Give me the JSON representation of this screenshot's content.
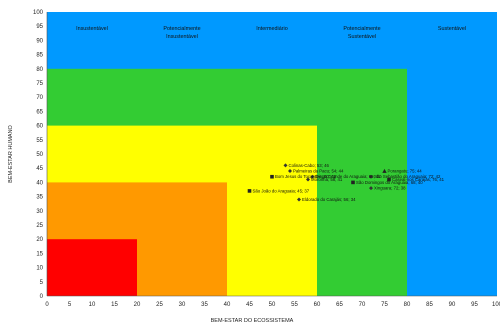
{
  "chart_data": {
    "type": "scatter",
    "xlabel": "BEM-ESTAR DO ECOSSISTEMA",
    "ylabel": "BEM-ESTAR HUMANO",
    "xlim": [
      0,
      100
    ],
    "ylim": [
      0,
      100
    ],
    "x_ticks": [
      0,
      5,
      10,
      15,
      20,
      25,
      30,
      35,
      40,
      45,
      50,
      55,
      60,
      65,
      70,
      75,
      80,
      85,
      90,
      95,
      100
    ],
    "y_ticks": [
      0,
      5,
      10,
      15,
      20,
      25,
      30,
      35,
      40,
      45,
      50,
      55,
      60,
      65,
      70,
      75,
      80,
      85,
      90,
      95,
      100
    ],
    "grid": false,
    "zones": [
      {
        "name": "Insustentável",
        "lines": [
          "Insustentável"
        ],
        "color": "#ff0000",
        "min": 0,
        "max": 20
      },
      {
        "name": "Potencialmente Insustentável",
        "lines": [
          "Potencialmente",
          "Insustentável"
        ],
        "color": "#ff9900",
        "min": 20,
        "max": 40
      },
      {
        "name": "Intermediário",
        "lines": [
          "Intermediário"
        ],
        "color": "#ffff00",
        "min": 40,
        "max": 60
      },
      {
        "name": "Potencialmente Sustentável",
        "lines": [
          "Potencialmente",
          "Sustentável"
        ],
        "color": "#33cc33",
        "min": 60,
        "max": 80
      },
      {
        "name": "Sustentável",
        "lines": [
          "Sustentável"
        ],
        "color": "#0099ff",
        "min": 80,
        "max": 100
      }
    ],
    "points": [
      {
        "label": "Porangatu; 75; 44",
        "x": 75,
        "y": 44,
        "marker": "triangle"
      },
      {
        "label": "Caseal-rios Carajás; 76; 41",
        "x": 76,
        "y": 41,
        "marker": "square"
      },
      {
        "label": "Colinas-Cabo; 53; 46",
        "x": 53,
        "y": 46,
        "marker": "diamond"
      },
      {
        "label": "Diego Grande do Araguaia; 59; 42",
        "x": 59,
        "y": 42,
        "marker": "diamond"
      },
      {
        "label": "Palmeiras da Pacu; 54; 44",
        "x": 54,
        "y": 44,
        "marker": "diamond"
      },
      {
        "label": "Bom Jesus do Tocantins; 50; 42",
        "x": 50,
        "y": 42,
        "marker": "square"
      },
      {
        "label": "Moronhá; 58; 41",
        "x": 58,
        "y": 41,
        "marker": "diamond"
      },
      {
        "label": "São Sebastião do Araguaia; 72; 42",
        "x": 72,
        "y": 42,
        "marker": "diamond"
      },
      {
        "label": "São Domingos do Araguaia; 68; 40",
        "x": 68,
        "y": 40,
        "marker": "square"
      },
      {
        "label": "Xinguara; 72; 38",
        "x": 72,
        "y": 38,
        "marker": "diamond"
      },
      {
        "label": "São João do Araguaia; 45; 37",
        "x": 45,
        "y": 37,
        "marker": "square"
      },
      {
        "label": "Eldorado do Carajás; 56; 34",
        "x": 56,
        "y": 34,
        "marker": "diamond"
      }
    ]
  }
}
